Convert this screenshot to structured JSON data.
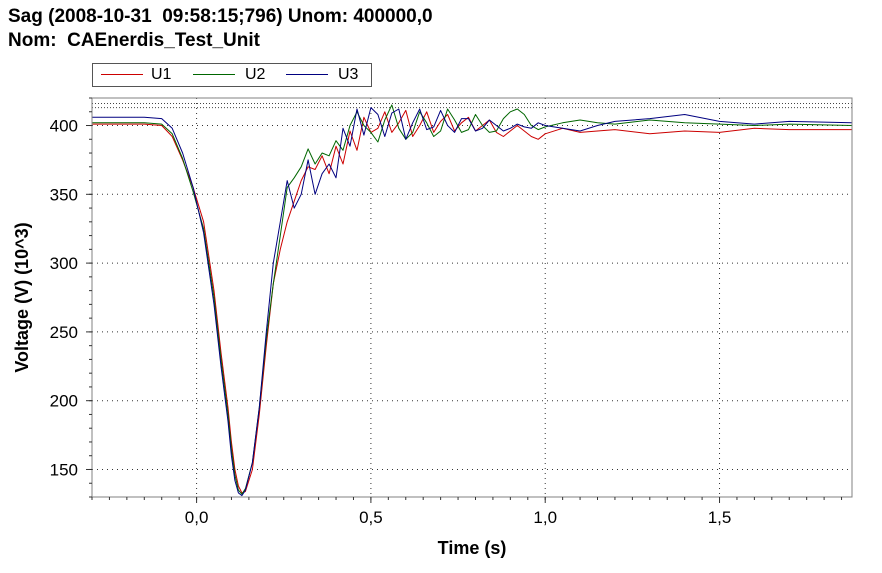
{
  "header": {
    "title_line1": "Sag (2008-10-31  09:58:15;796) Unom: 400000,0",
    "title_line2": "Nom:  CAEnerdis_Test_Unit"
  },
  "legend": [
    {
      "label": "U1",
      "color": "#cc0000"
    },
    {
      "label": "U2",
      "color": "#006600"
    },
    {
      "label": "U3",
      "color": "#000080"
    }
  ],
  "chart_data": {
    "type": "line",
    "xlabel": "Time (s)",
    "ylabel": "Voltage (V) (10^3)",
    "xlim": [
      -0.3,
      1.88
    ],
    "ylim": [
      130,
      420
    ],
    "x_ticks": [
      0.0,
      0.5,
      1.0,
      1.5
    ],
    "x_tick_labels": [
      "0,0",
      "0,5",
      "1,0",
      "1,5"
    ],
    "y_ticks": [
      150,
      200,
      250,
      300,
      350,
      400
    ],
    "y_tick_labels": [
      "150",
      "200",
      "250",
      "300",
      "350",
      "400"
    ],
    "grid": true,
    "grid_style": "dotted",
    "reference_lines": [
      413,
      416
    ],
    "series": [
      {
        "name": "U1",
        "color": "#cc0000",
        "x": [
          -0.3,
          -0.15,
          -0.1,
          -0.07,
          -0.04,
          -0.01,
          0.02,
          0.05,
          0.07,
          0.09,
          0.1,
          0.11,
          0.12,
          0.13,
          0.14,
          0.16,
          0.18,
          0.2,
          0.22,
          0.24,
          0.26,
          0.28,
          0.3,
          0.32,
          0.34,
          0.36,
          0.38,
          0.4,
          0.42,
          0.44,
          0.46,
          0.48,
          0.5,
          0.52,
          0.54,
          0.56,
          0.58,
          0.6,
          0.62,
          0.64,
          0.66,
          0.68,
          0.7,
          0.72,
          0.74,
          0.76,
          0.78,
          0.8,
          0.82,
          0.84,
          0.86,
          0.88,
          0.9,
          0.92,
          0.94,
          0.96,
          0.98,
          1.0,
          1.05,
          1.1,
          1.15,
          1.2,
          1.3,
          1.4,
          1.5,
          1.6,
          1.7,
          1.88
        ],
        "y": [
          401,
          401,
          400,
          392,
          375,
          355,
          330,
          280,
          235,
          195,
          170,
          150,
          138,
          133,
          134,
          150,
          190,
          240,
          285,
          310,
          330,
          345,
          360,
          370,
          368,
          378,
          365,
          385,
          372,
          396,
          382,
          406,
          395,
          398,
          410,
          395,
          402,
          411,
          392,
          400,
          410,
          395,
          403,
          408,
          396,
          402,
          406,
          396,
          400,
          404,
          395,
          392,
          396,
          400,
          396,
          392,
          390,
          394,
          398,
          395,
          396,
          397,
          394,
          396,
          395,
          398,
          397,
          397
        ]
      },
      {
        "name": "U2",
        "color": "#006600",
        "x": [
          -0.3,
          -0.15,
          -0.1,
          -0.07,
          -0.04,
          -0.01,
          0.02,
          0.05,
          0.07,
          0.09,
          0.1,
          0.11,
          0.12,
          0.13,
          0.14,
          0.16,
          0.18,
          0.2,
          0.22,
          0.24,
          0.26,
          0.28,
          0.3,
          0.32,
          0.34,
          0.36,
          0.38,
          0.4,
          0.42,
          0.44,
          0.46,
          0.48,
          0.5,
          0.52,
          0.54,
          0.56,
          0.58,
          0.6,
          0.62,
          0.64,
          0.66,
          0.68,
          0.7,
          0.72,
          0.74,
          0.76,
          0.78,
          0.8,
          0.82,
          0.84,
          0.86,
          0.88,
          0.9,
          0.92,
          0.94,
          0.96,
          0.98,
          1.0,
          1.05,
          1.1,
          1.15,
          1.2,
          1.3,
          1.4,
          1.5,
          1.6,
          1.7,
          1.88
        ],
        "y": [
          402,
          402,
          401,
          394,
          376,
          352,
          325,
          275,
          230,
          190,
          165,
          146,
          135,
          132,
          136,
          155,
          195,
          245,
          285,
          320,
          355,
          362,
          370,
          383,
          372,
          380,
          378,
          389,
          382,
          400,
          410,
          400,
          395,
          388,
          404,
          415,
          398,
          390,
          395,
          410,
          402,
          392,
          396,
          412,
          404,
          395,
          397,
          408,
          400,
          395,
          396,
          405,
          410,
          412,
          408,
          400,
          397,
          399,
          402,
          404,
          402,
          401,
          404,
          402,
          401,
          400,
          401,
          400
        ]
      },
      {
        "name": "U3",
        "color": "#000080",
        "x": [
          -0.3,
          -0.15,
          -0.1,
          -0.07,
          -0.04,
          -0.01,
          0.02,
          0.05,
          0.07,
          0.09,
          0.1,
          0.11,
          0.12,
          0.13,
          0.14,
          0.16,
          0.18,
          0.2,
          0.22,
          0.24,
          0.26,
          0.28,
          0.3,
          0.32,
          0.34,
          0.36,
          0.38,
          0.4,
          0.42,
          0.44,
          0.46,
          0.48,
          0.5,
          0.52,
          0.54,
          0.56,
          0.58,
          0.6,
          0.62,
          0.64,
          0.66,
          0.68,
          0.7,
          0.72,
          0.74,
          0.76,
          0.78,
          0.8,
          0.82,
          0.84,
          0.86,
          0.88,
          0.9,
          0.92,
          0.94,
          0.96,
          0.98,
          1.0,
          1.05,
          1.1,
          1.15,
          1.2,
          1.3,
          1.4,
          1.5,
          1.6,
          1.7,
          1.88
        ],
        "y": [
          406,
          406,
          405,
          398,
          380,
          355,
          322,
          270,
          225,
          185,
          160,
          142,
          133,
          131,
          135,
          155,
          195,
          250,
          300,
          330,
          360,
          340,
          350,
          375,
          350,
          365,
          372,
          362,
          398,
          385,
          412,
          393,
          413,
          408,
          392,
          409,
          412,
          390,
          402,
          412,
          397,
          399,
          411,
          400,
          395,
          405,
          405,
          396,
          398,
          404,
          400,
          396,
          398,
          401,
          399,
          398,
          402,
          400,
          398,
          396,
          400,
          403,
          405,
          408,
          403,
          401,
          403,
          402
        ]
      }
    ]
  }
}
